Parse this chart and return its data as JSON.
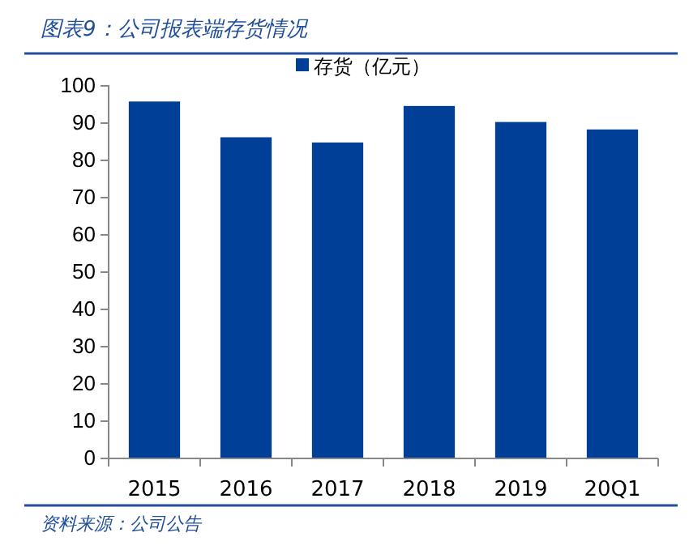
{
  "chart_data": {
    "type": "bar",
    "title": "图表9：公司报表端存货情况",
    "categories": [
      "2015",
      "2016",
      "2017",
      "2018",
      "2019",
      "20Q1"
    ],
    "series": [
      {
        "name": "存货（亿元）",
        "color": "#003f98",
        "values": [
          95.8,
          86.2,
          84.8,
          94.6,
          90.3,
          88.3
        ]
      }
    ],
    "ylim": [
      0,
      100
    ],
    "yticks": [
      0,
      10,
      20,
      30,
      40,
      50,
      60,
      70,
      80,
      90,
      100
    ],
    "grid": false,
    "legend": "top",
    "annotations": [
      "资料来源：公司公告"
    ]
  }
}
